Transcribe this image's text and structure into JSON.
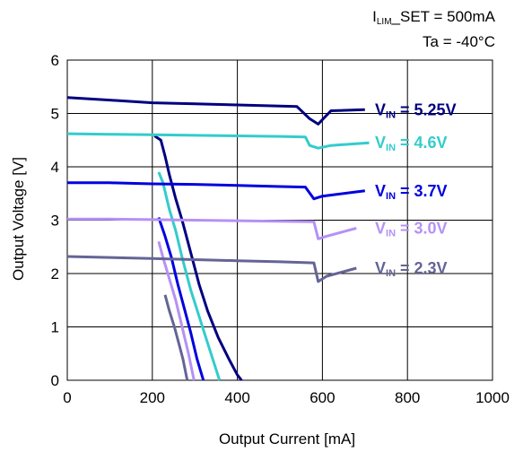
{
  "chart_data": {
    "type": "line",
    "title": "",
    "annotations": [
      {
        "main": "I",
        "sub": "LIM",
        "rest": "_SET = 500mA"
      },
      {
        "main": "Ta = -40°C",
        "sub": "",
        "rest": ""
      }
    ],
    "xlabel": "Output Current [mA]",
    "ylabel": "Output Voltage [V]",
    "xlim": [
      0,
      1000
    ],
    "ylim": [
      0,
      6
    ],
    "xticks": [
      "0",
      "200",
      "400",
      "600",
      "800",
      "1000"
    ],
    "yticks": [
      "0",
      "1",
      "2",
      "3",
      "4",
      "5",
      "6"
    ],
    "grid": true,
    "series": [
      {
        "name_main": "V",
        "name_sub": "IN",
        "name_rest": " = 5.25V",
        "color": "#000080",
        "curve": [
          [
            0,
            5.3
          ],
          [
            100,
            5.25
          ],
          [
            200,
            5.2
          ],
          [
            300,
            5.18
          ],
          [
            400,
            5.16
          ],
          [
            500,
            5.14
          ],
          [
            540,
            5.13
          ],
          [
            570,
            4.9
          ],
          [
            590,
            4.8
          ],
          [
            620,
            5.05
          ],
          [
            700,
            5.07
          ]
        ],
        "droop": [
          [
            205,
            4.58
          ],
          [
            220,
            4.5
          ],
          [
            230,
            4.2
          ],
          [
            240,
            3.85
          ],
          [
            255,
            3.4
          ],
          [
            270,
            3.0
          ],
          [
            290,
            2.4
          ],
          [
            310,
            1.8
          ],
          [
            330,
            1.3
          ],
          [
            355,
            0.8
          ],
          [
            380,
            0.4
          ],
          [
            400,
            0.1
          ],
          [
            410,
            0.0
          ]
        ]
      },
      {
        "name_main": "V",
        "name_sub": "IN",
        "name_rest": " = 4.6V",
        "color": "#33CCCC",
        "curve": [
          [
            0,
            4.62
          ],
          [
            100,
            4.61
          ],
          [
            200,
            4.6
          ],
          [
            300,
            4.59
          ],
          [
            400,
            4.58
          ],
          [
            500,
            4.57
          ],
          [
            560,
            4.56
          ],
          [
            570,
            4.4
          ],
          [
            590,
            4.35
          ],
          [
            620,
            4.4
          ],
          [
            710,
            4.45
          ]
        ],
        "droop": [
          [
            215,
            3.9
          ],
          [
            225,
            3.7
          ],
          [
            240,
            3.2
          ],
          [
            255,
            2.8
          ],
          [
            270,
            2.3
          ],
          [
            290,
            1.7
          ],
          [
            310,
            1.2
          ],
          [
            330,
            0.7
          ],
          [
            350,
            0.2
          ],
          [
            358,
            0.0
          ]
        ]
      },
      {
        "name_main": "V",
        "name_sub": "IN",
        "name_rest": " = 3.7V",
        "color": "#0000E0",
        "curve": [
          [
            0,
            3.7
          ],
          [
            100,
            3.7
          ],
          [
            200,
            3.68
          ],
          [
            300,
            3.67
          ],
          [
            400,
            3.65
          ],
          [
            500,
            3.63
          ],
          [
            560,
            3.62
          ],
          [
            580,
            3.4
          ],
          [
            600,
            3.45
          ],
          [
            700,
            3.55
          ]
        ],
        "droop": [
          [
            215,
            3.05
          ],
          [
            230,
            2.7
          ],
          [
            245,
            2.3
          ],
          [
            260,
            1.8
          ],
          [
            275,
            1.35
          ],
          [
            290,
            0.9
          ],
          [
            305,
            0.4
          ],
          [
            320,
            0.0
          ]
        ]
      },
      {
        "name_main": "V",
        "name_sub": "IN",
        "name_rest": " = 3.0V",
        "color": "#B591F5",
        "curve": [
          [
            0,
            3.02
          ],
          [
            100,
            3.02
          ],
          [
            200,
            3.01
          ],
          [
            300,
            3.0
          ],
          [
            400,
            2.99
          ],
          [
            500,
            2.98
          ],
          [
            580,
            2.97
          ],
          [
            590,
            2.65
          ],
          [
            610,
            2.7
          ],
          [
            680,
            2.85
          ]
        ],
        "droop": [
          [
            215,
            2.6
          ],
          [
            225,
            2.3
          ],
          [
            240,
            1.9
          ],
          [
            255,
            1.5
          ],
          [
            270,
            1.0
          ],
          [
            285,
            0.5
          ],
          [
            298,
            0.0
          ]
        ]
      },
      {
        "name_main": "V",
        "name_sub": "IN",
        "name_rest": " = 2.3V",
        "color": "#646496",
        "curve": [
          [
            0,
            2.32
          ],
          [
            100,
            2.3
          ],
          [
            200,
            2.28
          ],
          [
            300,
            2.26
          ],
          [
            400,
            2.24
          ],
          [
            500,
            2.22
          ],
          [
            580,
            2.2
          ],
          [
            590,
            1.85
          ],
          [
            610,
            1.95
          ],
          [
            680,
            2.1
          ]
        ],
        "droop": [
          [
            230,
            1.6
          ],
          [
            240,
            1.3
          ],
          [
            252,
            1.0
          ],
          [
            262,
            0.7
          ],
          [
            272,
            0.4
          ],
          [
            282,
            0.0
          ]
        ]
      }
    ]
  }
}
